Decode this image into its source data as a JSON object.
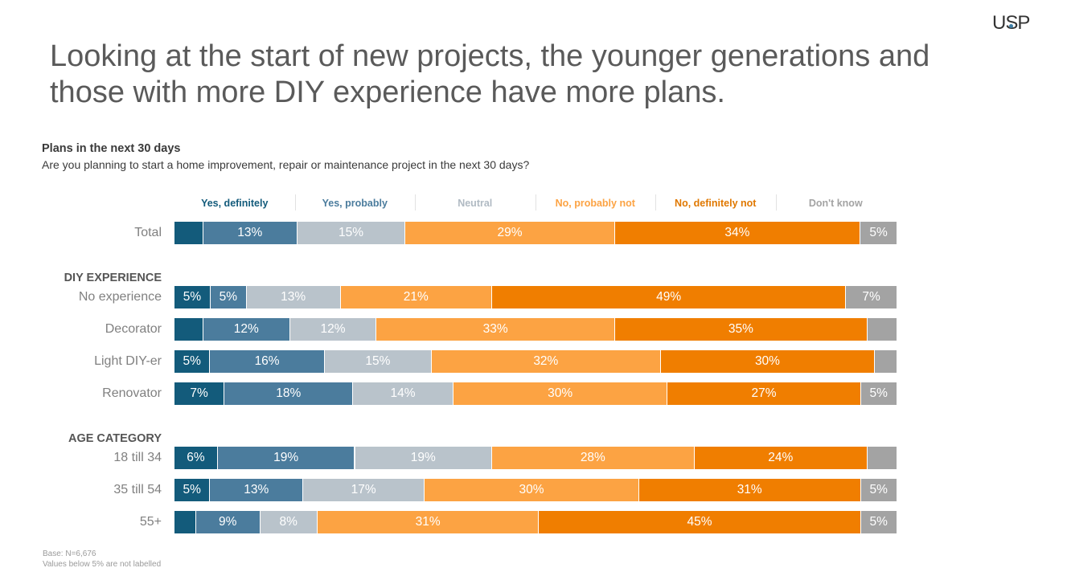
{
  "logo": "USP",
  "headline": "Looking at the start of new projects, the younger generations and those with more DIY experience have more plans.",
  "footnotes": [
    "Base: N=6,676",
    "Values below 5% are not labelled"
  ],
  "chart_data": {
    "type": "bar",
    "orientation": "horizontal-stacked-100",
    "title": "Plans in the next 30 days",
    "subtitle": "Are you planning to start a home improvement, repair or maintenance project in the next 30 days?",
    "legend_position": "top",
    "series": [
      {
        "name": "Yes, definitely",
        "color": "#135b7b",
        "label_color": "#135b7b"
      },
      {
        "name": "Yes, probably",
        "color": "#4b7c9d",
        "label_color": "#4b7c9d"
      },
      {
        "name": "Neutral",
        "color": "#b9c3cb",
        "label_color": "#b0bac3"
      },
      {
        "name": "No, probably not",
        "color": "#fca343",
        "label_color": "#fca343"
      },
      {
        "name": "No, definitely not",
        "color": "#f07e00",
        "label_color": "#e07800"
      },
      {
        "name": "Don't know",
        "color": "#a3a3a3",
        "label_color": "#a3a3a3"
      }
    ],
    "groups": [
      {
        "label": "",
        "rows": [
          {
            "label": "Total",
            "values": [
              4,
              13,
              15,
              29,
              34,
              5
            ]
          }
        ]
      },
      {
        "label": "DIY EXPERIENCE",
        "rows": [
          {
            "label": "No experience",
            "values": [
              5,
              5,
              13,
              21,
              49,
              7
            ]
          },
          {
            "label": "Decorator",
            "values": [
              4,
              12,
              12,
              33,
              35,
              4
            ]
          },
          {
            "label": "Light DIY-er",
            "values": [
              5,
              16,
              15,
              32,
              30,
              3
            ]
          },
          {
            "label": "Renovator",
            "values": [
              7,
              18,
              14,
              30,
              27,
              5
            ]
          }
        ]
      },
      {
        "label": "AGE CATEGORY",
        "rows": [
          {
            "label": "18 till 34",
            "values": [
              6,
              19,
              19,
              28,
              24,
              4
            ]
          },
          {
            "label": "35 till 54",
            "values": [
              5,
              13,
              17,
              30,
              31,
              5
            ]
          },
          {
            "label": "55+",
            "values": [
              3,
              9,
              8,
              31,
              45,
              5
            ]
          }
        ]
      }
    ],
    "label_threshold": 5,
    "value_suffix": "%"
  }
}
